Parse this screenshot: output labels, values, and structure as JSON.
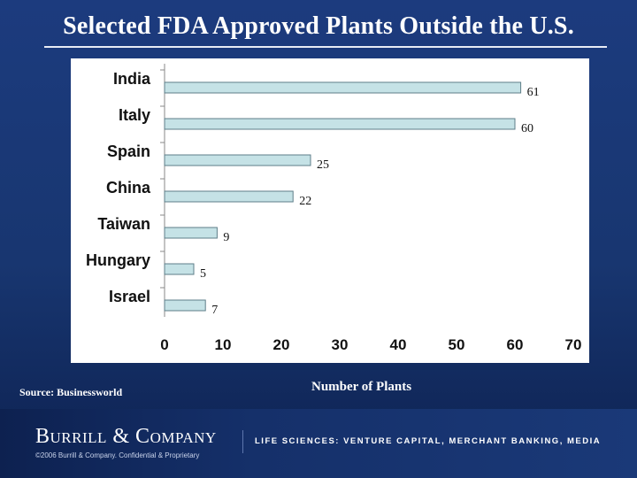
{
  "slide": {
    "title": "Selected FDA Approved Plants Outside the U.S.",
    "source": "Source: Businessworld",
    "x_axis_title": "Number  of Plants"
  },
  "footer": {
    "logo": "Burrill & Company",
    "copyright": "©2006 Burrill & Company. Confidential & Proprietary",
    "tagline": "LIFE SCIENCES: VENTURE CAPITAL, MERCHANT BANKING, MEDIA"
  },
  "colors": {
    "background": "#1c3b7e",
    "bar_fill": "#c5e2e6",
    "bar_stroke": "#5e7e88"
  },
  "chart_data": {
    "type": "bar",
    "orientation": "horizontal",
    "categories": [
      "India",
      "Italy",
      "Spain",
      "China",
      "Taiwan",
      "Hungary",
      "Israel"
    ],
    "values": [
      61,
      60,
      25,
      22,
      9,
      5,
      7
    ],
    "data_labels": [
      "61",
      "60",
      "25",
      "22",
      "9",
      "5",
      "7"
    ],
    "xlim": [
      0,
      70
    ],
    "xticks": [
      0,
      10,
      20,
      30,
      40,
      50,
      60,
      70
    ],
    "xlabel": "Number  of Plants",
    "grid": false,
    "legend": "none"
  }
}
